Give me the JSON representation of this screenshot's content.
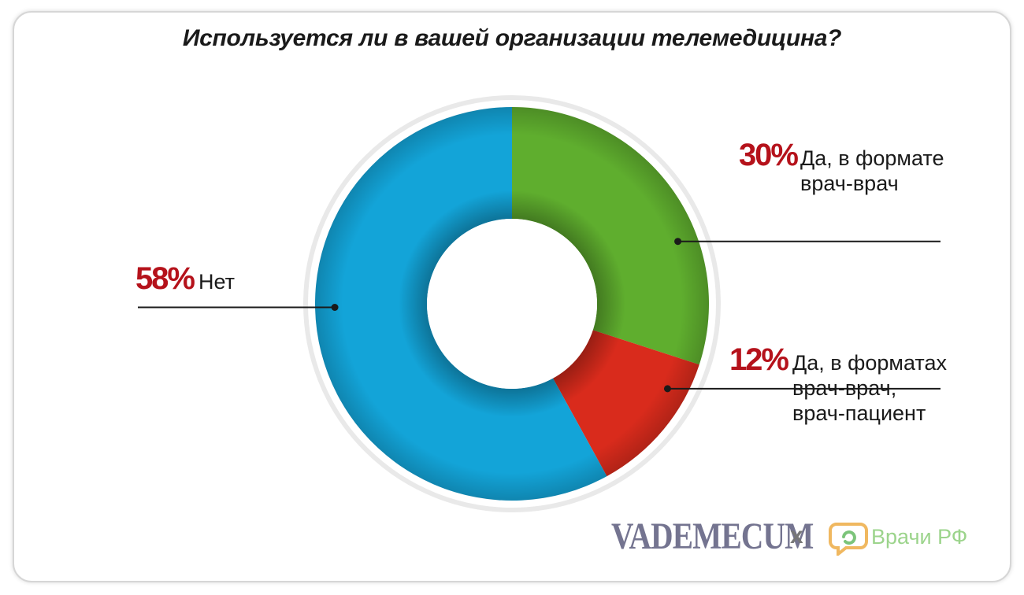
{
  "chart_data": {
    "type": "pie",
    "title": "Используется ли в вашей организации телемедицина?",
    "slices": [
      {
        "value": 30,
        "percent_label": "30%",
        "label_lines": [
          "Да, в формате",
          "врач-врач"
        ],
        "color": "#5fae2e"
      },
      {
        "value": 12,
        "percent_label": "12%",
        "label_lines": [
          "Да, в форматах",
          "врач-врач,",
          "врач-пациент"
        ],
        "color": "#d92b1c"
      },
      {
        "value": 58,
        "percent_label": "58%",
        "label_lines": [
          "Нет"
        ],
        "color": "#13a4d8"
      }
    ],
    "percent_color": "#b5121b",
    "donut": true
  },
  "footer": {
    "brand_left": "VADEMECUM",
    "separator": "x",
    "brand_right": "Врачи РФ",
    "logo_icon": "speech-bubble-logo-icon"
  }
}
